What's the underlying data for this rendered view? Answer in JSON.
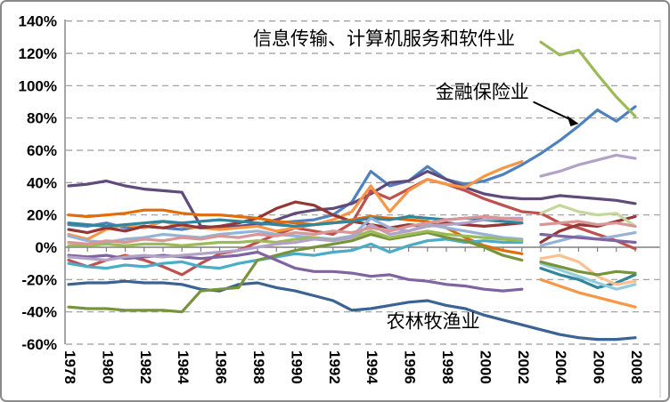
{
  "chart_data": {
    "type": "line",
    "title": "",
    "xlabel": "",
    "ylabel": "",
    "x_start": 1978,
    "x_end": 2008,
    "ylim": [
      -60,
      140
    ],
    "y_unit": "%",
    "grid": "dashed-horizontal",
    "legend": "none",
    "y_ticks": [
      {
        "label": "140%",
        "value": 140
      },
      {
        "label": "120%",
        "value": 120
      },
      {
        "label": "100%",
        "value": 100
      },
      {
        "label": "80%",
        "value": 80
      },
      {
        "label": "60%",
        "value": 60
      },
      {
        "label": "40%",
        "value": 40
      },
      {
        "label": "20%",
        "value": 20
      },
      {
        "label": "0%",
        "value": 0
      },
      {
        "label": "-20%",
        "value": -20
      },
      {
        "label": "-40%",
        "value": -40
      },
      {
        "label": "-60%",
        "value": -60
      }
    ],
    "x_ticks": [
      {
        "label": "1978",
        "year": 1978
      },
      {
        "label": "1980",
        "year": 1980
      },
      {
        "label": "1982",
        "year": 1982
      },
      {
        "label": "1984",
        "year": 1984
      },
      {
        "label": "1986",
        "year": 1986
      },
      {
        "label": "1988",
        "year": 1988
      },
      {
        "label": "1990",
        "year": 1990
      },
      {
        "label": "1992",
        "year": 1992
      },
      {
        "label": "1994",
        "year": 1994
      },
      {
        "label": "1996",
        "year": 1996
      },
      {
        "label": "1998",
        "year": 1998
      },
      {
        "label": "2000",
        "year": 2000
      },
      {
        "label": "2002",
        "year": 2002
      },
      {
        "label": "2004",
        "year": 2004
      },
      {
        "label": "2006",
        "year": 2006
      },
      {
        "label": "2008",
        "year": 2008
      }
    ],
    "annotations": [
      {
        "id": "info-industry",
        "text": "信息传输、计算机服务和软件业",
        "year": 1994.7,
        "value": 129
      },
      {
        "id": "finance",
        "text": "金融保险业",
        "year": 1999.9,
        "value": 96
      },
      {
        "id": "agriculture",
        "text": "农林牧渔业",
        "year": 1997.3,
        "value": -46
      }
    ],
    "arrow": {
      "from_year": 2002.6,
      "from_value": 90,
      "to_year": 2005.0,
      "to_value": 76.5
    },
    "series": [
      {
        "id": "finance-blue",
        "label": "金融保险业",
        "color": "#4F81BD",
        "start_year": 1978,
        "values": [
          14,
          13,
          15,
          12,
          13,
          12,
          11,
          13,
          12,
          13,
          14,
          15,
          16,
          17,
          20,
          28,
          47,
          38,
          41,
          50,
          42,
          39,
          41,
          45,
          51,
          58,
          66,
          75,
          85,
          78,
          87
        ]
      },
      {
        "id": "agriculture-darkblue",
        "label": "农林牧渔业",
        "color": "#3A6293",
        "start_year": 1978,
        "values": [
          -23,
          -22,
          -22,
          -21,
          -22,
          -22,
          -23,
          -26,
          -27,
          -23,
          -22,
          -25,
          -27,
          -30,
          -33,
          -39,
          -38,
          -36,
          -34,
          -33,
          -36,
          -38,
          -42,
          -45,
          -48,
          -51,
          -54,
          -56,
          -57,
          -57,
          -56
        ]
      },
      {
        "id": "info-green",
        "label": "信息传输、计算机服务和软件业",
        "color": "#9BBB59",
        "start_year": 2003,
        "values": [
          127,
          119,
          122,
          107,
          93,
          81
        ]
      },
      {
        "id": "dark-purple",
        "label": "",
        "color": "#604A7B",
        "start_year": 1978,
        "values": [
          38,
          39,
          41,
          38,
          36,
          35,
          34,
          13,
          12,
          13,
          14,
          17,
          21,
          23,
          24,
          27,
          33,
          40,
          41,
          47,
          42,
          37,
          33,
          31,
          30,
          30,
          32,
          31,
          30,
          29,
          27
        ]
      },
      {
        "id": "lavender",
        "label": "",
        "color": "#B3A2C7",
        "start_year": 2003,
        "values": [
          44,
          47,
          51,
          54,
          57,
          55
        ]
      },
      {
        "id": "brick-red",
        "label": "",
        "color": "#C0504D",
        "start_year": 1978,
        "values": [
          -8,
          -12,
          -8,
          -5,
          -8,
          -12,
          -17,
          -10,
          -4,
          -2,
          3,
          8,
          12,
          10,
          8,
          15,
          35,
          30,
          36,
          42,
          39,
          35,
          30,
          26,
          22,
          21,
          15,
          12,
          8,
          4,
          -1
        ]
      },
      {
        "id": "orange-pre2003",
        "label": "",
        "color": "#F79646",
        "start_year": 1978,
        "values": [
          8,
          5,
          11,
          14,
          12,
          16,
          13,
          12,
          11,
          12,
          13,
          10,
          12,
          14,
          17,
          22,
          38,
          22,
          35,
          42,
          39,
          37,
          44,
          49,
          53
        ]
      },
      {
        "id": "dark-red-pre2003",
        "label": "",
        "color": "#943634",
        "start_year": 1978,
        "values": [
          11,
          9,
          12,
          10,
          13,
          12,
          14,
          12,
          13,
          15,
          18,
          24,
          28,
          26,
          20,
          16,
          14,
          12,
          14,
          13,
          15,
          14,
          13,
          14,
          15
        ]
      },
      {
        "id": "dark-orange-pre2003",
        "label": "",
        "color": "#E26B0A",
        "start_year": 1978,
        "values": [
          20,
          19,
          20,
          21,
          23,
          23,
          21,
          20,
          20,
          19,
          18,
          16,
          15,
          14,
          15,
          17,
          19,
          18,
          17,
          16,
          12,
          6,
          1,
          -2,
          -4
        ]
      },
      {
        "id": "teal-pre2003",
        "label": "",
        "color": "#31859C",
        "start_year": 1978,
        "values": [
          15,
          14,
          13,
          14,
          15,
          16,
          15,
          16,
          17,
          16,
          15,
          14,
          13,
          14,
          15,
          16,
          18,
          17,
          19,
          18,
          17,
          18,
          17,
          16,
          15
        ]
      },
      {
        "id": "cyan-pre2003",
        "label": "",
        "color": "#4BACC6",
        "start_year": 1978,
        "values": [
          -10,
          -12,
          -13,
          -11,
          -12,
          -10,
          -9,
          -12,
          -13,
          -10,
          -8,
          -6,
          -4,
          -5,
          -3,
          -2,
          2,
          -3,
          1,
          4,
          5,
          3,
          4,
          3,
          3
        ]
      },
      {
        "id": "light-blue-pre2003",
        "label": "",
        "color": "#95B3D7",
        "start_year": 1978,
        "values": [
          7,
          4,
          3,
          5,
          6,
          8,
          7,
          6,
          8,
          9,
          10,
          8,
          7,
          6,
          5,
          7,
          18,
          12,
          10,
          14,
          12,
          10,
          8,
          6,
          5
        ]
      },
      {
        "id": "olive-pre2003",
        "label": "",
        "color": "#77933C",
        "start_year": 1978,
        "values": [
          -37,
          -38,
          -38,
          -39,
          -39,
          -39,
          -40,
          -27,
          -26,
          -25,
          -8,
          -5,
          -2,
          0,
          2,
          4,
          8,
          5,
          7,
          9,
          6,
          4,
          0,
          -5,
          -8
        ]
      },
      {
        "id": "green-pre2003",
        "label": "",
        "color": "#9BBB59",
        "start_year": 1978,
        "values": [
          1,
          1,
          2,
          1,
          2,
          2,
          1,
          2,
          3,
          3,
          4,
          3,
          5,
          6,
          4,
          6,
          10,
          6,
          8,
          10,
          8,
          7,
          6,
          5,
          4
        ]
      },
      {
        "id": "medium-purple-pre2003",
        "label": "",
        "color": "#8064A2",
        "start_year": 1978,
        "values": [
          -5,
          -6,
          -5,
          -7,
          -6,
          -5,
          -6,
          -7,
          -6,
          -5,
          -3,
          -8,
          -13,
          -15,
          -15,
          -16,
          -18,
          -17,
          -20,
          -21,
          -23,
          -24,
          -26,
          -27,
          -26
        ]
      },
      {
        "id": "light-purple-pre2003",
        "label": "",
        "color": "#B3A2C7",
        "start_year": 1978,
        "values": [
          -6,
          -7,
          -8,
          -6,
          -5,
          -6,
          -5,
          -4,
          -3,
          -2,
          0,
          2,
          3,
          5,
          4,
          6,
          14,
          8,
          10,
          13,
          14,
          15,
          17,
          18,
          18
        ]
      },
      {
        "id": "pink-pre2003",
        "label": "",
        "color": "#D99694",
        "start_year": 1978,
        "values": [
          3,
          2,
          4,
          3,
          5,
          4,
          6,
          5,
          7,
          6,
          8,
          7,
          9,
          8,
          10,
          9,
          12,
          10,
          13,
          15,
          17,
          18,
          19,
          18,
          17
        ]
      },
      {
        "id": "dark-red-post2003",
        "label": "",
        "color": "#943634",
        "start_year": 2003,
        "values": [
          3,
          10,
          14,
          13,
          16,
          19
        ]
      },
      {
        "id": "teal-post2003",
        "label": "",
        "color": "#31859C",
        "start_year": 2003,
        "values": [
          -13,
          -17,
          -20,
          -25,
          -22,
          -17
        ]
      },
      {
        "id": "light-blue-post2003",
        "label": "",
        "color": "#95B3D7",
        "start_year": 2003,
        "values": [
          1,
          4,
          7,
          5,
          7,
          9
        ]
      },
      {
        "id": "light-aqua-post2003",
        "label": "",
        "color": "#92CDDC",
        "start_year": 2003,
        "values": [
          -10,
          -14,
          -18,
          -22,
          -26,
          -23
        ]
      },
      {
        "id": "peach-post2003",
        "label": "",
        "color": "#FAC090",
        "start_year": 2003,
        "values": [
          -7,
          -5,
          -9,
          -18,
          -23,
          -21
        ]
      },
      {
        "id": "orange-post2003",
        "label": "",
        "color": "#F79646",
        "start_year": 2003,
        "values": [
          -20,
          -24,
          -28,
          -31,
          -34,
          -37
        ]
      },
      {
        "id": "light-green-post2003",
        "label": "",
        "color": "#C3D69B",
        "start_year": 2003,
        "values": [
          21,
          26,
          22,
          20,
          21,
          13
        ]
      },
      {
        "id": "olive-post2003",
        "label": "",
        "color": "#77933C",
        "start_year": 2003,
        "values": [
          -9,
          -12,
          -15,
          -17,
          -15,
          -16
        ]
      },
      {
        "id": "pink-post2003",
        "label": "",
        "color": "#D99694",
        "start_year": 2003,
        "values": [
          14,
          15,
          16,
          14,
          15,
          13
        ]
      },
      {
        "id": "medium-purple-post2003",
        "label": "",
        "color": "#8064A2",
        "start_year": 2003,
        "values": [
          8,
          7,
          6,
          5,
          4,
          3
        ]
      }
    ]
  }
}
